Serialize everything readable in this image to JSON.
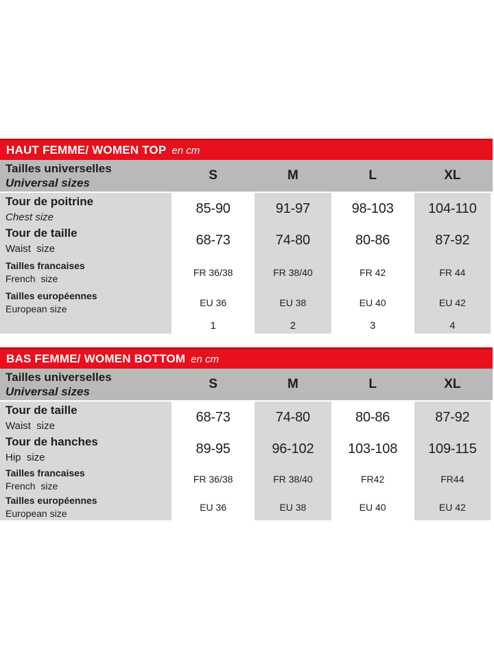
{
  "colors": {
    "banner_red": "#e8101c",
    "banner_red_dark": "#c11019",
    "header_gray": "#b9b9b9",
    "stripe_gray": "#d8d8d8",
    "text_dark": "#1d1d1b",
    "banner_text": "#ffffff"
  },
  "tables": {
    "top": {
      "banner": {
        "title": "HAUT FEMME/ WOMEN TOP",
        "unit": "en cm"
      },
      "header": {
        "label_fr": "Tailles universelles",
        "label_en": "Universal sizes",
        "sizes": [
          "S",
          "M",
          "L",
          "XL"
        ]
      },
      "rows": [
        {
          "label_fr": "Tour de poitrine",
          "label_en": "Chest size",
          "values": [
            "85-90",
            "91-97",
            "98-103",
            "104-110"
          ]
        },
        {
          "label_fr": "Tour de taille",
          "label_en": "Waist  size",
          "values": [
            "68-73",
            "74-80",
            "80-86",
            "87-92"
          ]
        },
        {
          "label_fr": "Tailles francaises",
          "label_en": "French  size",
          "values": [
            "FR 36/38",
            "FR 38/40",
            "FR 42",
            "FR 44"
          ]
        },
        {
          "label_fr": "Tailles européennes",
          "label_en": "European size",
          "values": [
            "EU 36",
            "EU 38",
            "EU 40",
            "EU 42"
          ]
        },
        {
          "label_fr": "",
          "label_en": "",
          "values": [
            "1",
            "2",
            "3",
            "4"
          ]
        }
      ]
    },
    "bottom": {
      "banner": {
        "title": "BAS FEMME/ WOMEN BOTTOM",
        "unit": "en cm"
      },
      "header": {
        "label_fr": "Tailles universelles",
        "label_en": "Universal sizes",
        "sizes": [
          "S",
          "M",
          "L",
          "XL"
        ]
      },
      "rows": [
        {
          "label_fr": "Tour de taille",
          "label_en": "Waist  size",
          "values": [
            "68-73",
            "74-80",
            "80-86",
            "87-92"
          ]
        },
        {
          "label_fr": "Tour de hanches",
          "label_en": "Hip  size",
          "values": [
            "89-95",
            "96-102",
            "103-108",
            "109-115"
          ]
        },
        {
          "label_fr": "Tailles francaises",
          "label_en": "French  size",
          "values": [
            "FR 36/38",
            "FR 38/40",
            "FR42",
            "FR44"
          ]
        },
        {
          "label_fr": "Tailles européennes",
          "label_en": "European size",
          "values": [
            "EU 36",
            "EU 38",
            "EU 40",
            "EU 42"
          ]
        }
      ]
    }
  }
}
